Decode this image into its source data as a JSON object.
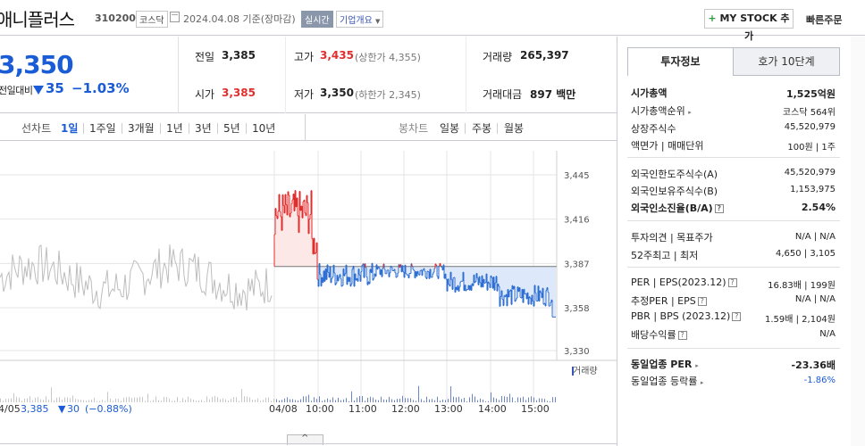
{
  "header": {
    "company_name": "애니플러스",
    "stock_code": "310200",
    "market_tag": "코스닥",
    "date_text": "2024.04.08  기준(장마감)",
    "realtime_tag": "실시간",
    "company_overview": "기업개요",
    "mystock_plus": "+",
    "mystock_label": "MY STOCK 추가",
    "quick_order": "빠른주문"
  },
  "price": {
    "current": "3,350",
    "change_label": "전일대비",
    "change_amount": "35",
    "change_rate": "−1.03%"
  },
  "quote": {
    "prev_label": "전일",
    "prev_value": "3,385",
    "high_label": "고가",
    "high_value": "3,435",
    "upper_limit": "(상한가 4,355)",
    "volume_label": "거래량",
    "volume_value": "265,397",
    "open_label": "시가",
    "open_value": "3,385",
    "low_label": "저가",
    "low_value": "3,350",
    "lower_limit": "(하한가 2,345)",
    "amount_label": "거래대금",
    "amount_value": "897 백만"
  },
  "period_tabs": {
    "line_label": "선차트",
    "items": [
      "1일",
      "1주일",
      "3개월",
      "1년",
      "3년",
      "5년",
      "10년"
    ],
    "candle_label": "봉차트",
    "candle_items": [
      "일봉",
      "주봉",
      "월봉"
    ]
  },
  "chart": {
    "y_ticks": [
      "3,445",
      "3,416",
      "3,387",
      "3,358",
      "3,330"
    ],
    "time_ticks": [
      "04/08",
      "10:00",
      "11:00",
      "12:00",
      "13:00",
      "14:00",
      "15:00"
    ],
    "prev_day_tick": "4/05",
    "prev_close": "3,385",
    "prev_change": "30",
    "prev_rate": "(−0.88%)",
    "volume_legend": "거래량",
    "collapse_icon": "^"
  },
  "chart_data": {
    "type": "line",
    "y_range": [
      3330,
      3445
    ],
    "baseline": 3385,
    "series": [
      {
        "x": [
          "04/08 09:00",
          "09:05",
          "09:10",
          "09:15",
          "09:20",
          "09:25",
          "09:30",
          "10:00",
          "11:00",
          "12:00",
          "13:00",
          "14:00",
          "15:00",
          "15:20"
        ],
        "values": [
          3385,
          3430,
          3420,
          3435,
          3400,
          3395,
          3380,
          3375,
          3365,
          3380,
          3380,
          3375,
          3365,
          3350
        ]
      }
    ]
  },
  "right_panel": {
    "tab_invest": "투자정보",
    "tab_order": "호가 10단계",
    "market_cap_label": "시가총액",
    "market_cap_value": "1,525억원",
    "cap_rank_label": "시가총액순위",
    "cap_rank_value": "코스닥 564위",
    "shares_label": "상장주식수",
    "shares_value": "45,520,979",
    "par_label": "액면가 | 매매단위",
    "par_value": "100원  |  1주",
    "foreign_limit_label": "외국인한도주식수(A)",
    "foreign_limit_value": "45,520,979",
    "foreign_hold_label": "외국인보유주식수(B)",
    "foreign_hold_value": "1,153,975",
    "foreign_rate_label": "외국인소진율(B/A)",
    "foreign_rate_value": "2.54%",
    "opinion_label": "투자의견 | 목표주가",
    "opinion_value": "N/A  |  N/A",
    "week52_label": "52주최고 | 최저",
    "week52_value": "4,650  |  3,105",
    "per_label": "PER | EPS(2023.12)",
    "per_value": "16.83배  |  199원",
    "est_per_label": "추정PER | EPS",
    "est_per_value": "N/A  |  N/A",
    "pbr_label": "PBR | BPS (2023.12)",
    "pbr_value": "1.59배  |  2,104원",
    "dividend_label": "배당수익률",
    "dividend_value": "N/A",
    "ind_per_label": "동일업종 PER",
    "ind_per_value": "-23.36배",
    "ind_rate_label": "동일업종 등락률",
    "ind_rate_value": "-1.86%",
    "qmark": "?"
  }
}
